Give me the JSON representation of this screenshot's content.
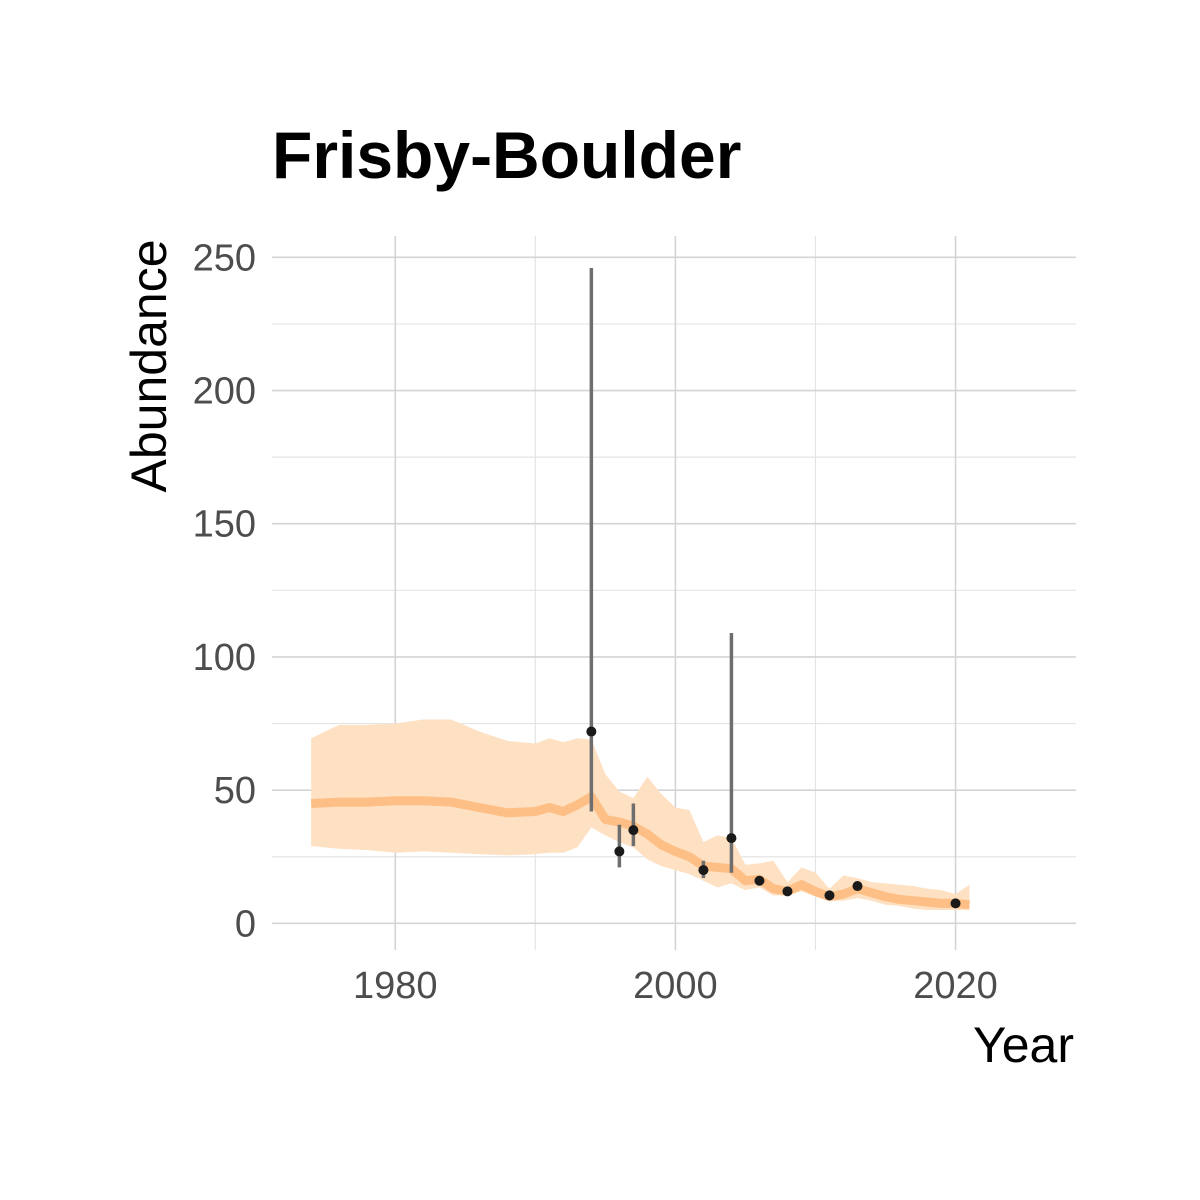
{
  "chart_data": {
    "type": "line",
    "title": "Frisby-Boulder",
    "xlabel": "Year",
    "ylabel": "Abundance",
    "xlim": [
      1971.2,
      2028.6
    ],
    "ylim": [
      -10,
      258
    ],
    "x_ticks": [
      1980,
      2000,
      2020
    ],
    "x_minor_ticks": [
      1990,
      2010
    ],
    "y_ticks": [
      0,
      50,
      100,
      150,
      200,
      250
    ],
    "y_minor_ticks": [
      25,
      75,
      125,
      175,
      225
    ],
    "grid": true,
    "legend": "none",
    "colors": {
      "estimate_line": "#fdbf86",
      "ribbon": "#fee0c2",
      "observations": "#1a1a1a",
      "error_bars": "#6e6e6e"
    },
    "series": [
      {
        "kind": "ribbon_line",
        "x": [
          1974,
          1976,
          1978,
          1980,
          1982,
          1984,
          1986,
          1988,
          1990,
          1991,
          1992,
          1993,
          1994,
          1995,
          1996,
          1997,
          1998,
          1999,
          2000,
          2001,
          2002,
          2003,
          2004,
          2005,
          2006,
          2007,
          2008,
          2009,
          2010,
          2011,
          2012,
          2013,
          2014,
          2015,
          2016,
          2017,
          2018,
          2019,
          2020,
          2021
        ],
        "y": [
          45,
          45.5,
          45.5,
          46,
          46,
          45.5,
          43.5,
          41.5,
          42,
          43.5,
          42,
          44.5,
          47.5,
          39,
          38,
          36.5,
          33.5,
          29.5,
          27,
          25,
          21.5,
          21,
          20.5,
          16,
          16.5,
          13,
          12,
          14.5,
          12,
          10,
          11,
          13,
          11.5,
          10,
          9,
          8.5,
          8,
          7.5,
          7.5,
          7
        ],
        "lower": [
          29,
          28,
          27.5,
          26.5,
          27,
          26.5,
          26,
          25.5,
          26,
          26.5,
          26.5,
          28.5,
          36,
          33,
          30.5,
          28.5,
          24,
          21.5,
          20,
          18.5,
          16,
          13.5,
          15,
          12.5,
          13.5,
          10.5,
          10.5,
          12,
          10,
          8.5,
          8.5,
          9.5,
          8.5,
          7,
          6.5,
          5.5,
          5,
          5,
          5,
          5
        ],
        "upper": [
          69.5,
          74.5,
          74.5,
          75,
          76.5,
          76.5,
          72,
          68.5,
          67.5,
          69.5,
          68,
          69.5,
          69,
          56,
          49.5,
          47,
          55,
          48.5,
          43.5,
          42.5,
          30.5,
          33,
          32,
          22,
          22.5,
          23.5,
          15.5,
          21,
          19,
          13,
          18,
          17,
          15.5,
          15,
          14.5,
          14,
          13,
          12.5,
          11,
          14.5
        ]
      },
      {
        "kind": "observations",
        "x": [
          1994,
          1996,
          1997,
          2002,
          2004,
          2006,
          2008,
          2011,
          2013,
          2020
        ],
        "y": [
          72,
          27,
          35,
          20,
          32,
          16,
          12,
          10.5,
          14,
          7.5
        ],
        "lower": [
          42,
          21,
          29,
          17,
          19,
          null,
          null,
          null,
          null,
          null
        ],
        "upper": [
          246,
          37,
          45,
          23.5,
          109,
          null,
          null,
          null,
          null,
          null
        ]
      }
    ]
  }
}
